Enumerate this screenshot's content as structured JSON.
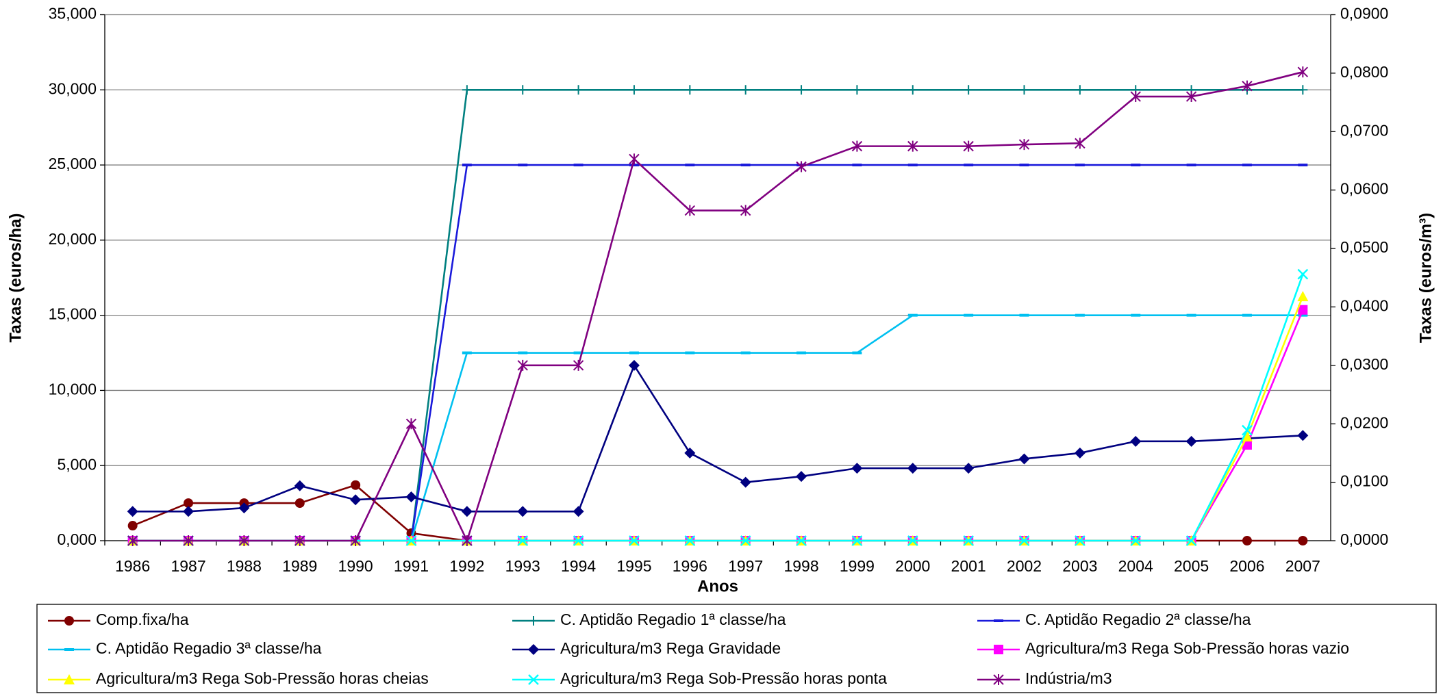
{
  "chart_data": {
    "type": "line",
    "x_label": "Anos",
    "y_label": "Taxas (euros/ha)",
    "y2_label": "Taxas (euros/m³)",
    "categories": [
      "1986",
      "1987",
      "1988",
      "1989",
      "1990",
      "1991",
      "1992",
      "1993",
      "1994",
      "1995",
      "1996",
      "1997",
      "1998",
      "1999",
      "2000",
      "2001",
      "2002",
      "2003",
      "2004",
      "2005",
      "2006",
      "2007"
    ],
    "ylim": [
      0,
      35
    ],
    "yticks": [
      {
        "value": 0,
        "label": "0,000"
      },
      {
        "value": 5,
        "label": "5,000"
      },
      {
        "value": 10,
        "label": "10,000"
      },
      {
        "value": 15,
        "label": "15,000"
      },
      {
        "value": 20,
        "label": "20,000"
      },
      {
        "value": 25,
        "label": "25,000"
      },
      {
        "value": 30,
        "label": "30,000"
      },
      {
        "value": 35,
        "label": "35,000"
      }
    ],
    "y2lim": [
      0,
      0.09
    ],
    "y2ticks": [
      {
        "value": 0,
        "label": "0,0000"
      },
      {
        "value": 0.01,
        "label": "0,0100"
      },
      {
        "value": 0.02,
        "label": "0,0200"
      },
      {
        "value": 0.03,
        "label": "0,0300"
      },
      {
        "value": 0.04,
        "label": "0,0400"
      },
      {
        "value": 0.05,
        "label": "0,0500"
      },
      {
        "value": 0.06,
        "label": "0,0600"
      },
      {
        "value": 0.07,
        "label": "0,0700"
      },
      {
        "value": 0.08,
        "label": "0,0800"
      },
      {
        "value": 0.09,
        "label": "0,0900"
      }
    ],
    "grid": true,
    "legend": "bottom",
    "series": [
      {
        "name": "Comp.fixa/ha",
        "color": "#800000",
        "marker": "circle",
        "values": [
          1.0,
          2.5,
          2.5,
          2.5,
          3.7,
          0.5,
          0,
          0,
          0,
          0,
          0,
          0,
          0,
          0,
          0,
          0,
          0,
          0,
          0,
          0,
          0,
          0
        ]
      },
      {
        "name": "C. Aptidão Regadio 1ª classe/ha",
        "color": "#008080",
        "marker": "plus",
        "values": [
          0,
          0,
          0,
          0,
          0,
          0,
          30,
          30,
          30,
          30,
          30,
          30,
          30,
          30,
          30,
          30,
          30,
          30,
          30,
          30,
          30,
          30
        ]
      },
      {
        "name": "C. Aptidão Regadio 2ª classe/ha",
        "color": "#1a1adb",
        "marker": "dash",
        "values": [
          0,
          0,
          0,
          0,
          0,
          0,
          25,
          25,
          25,
          25,
          25,
          25,
          25,
          25,
          25,
          25,
          25,
          25,
          25,
          25,
          25,
          25
        ]
      },
      {
        "name": "C. Aptidão Regadio 3ª classe/ha",
        "color": "#00c0f0",
        "marker": "dash",
        "values": [
          0,
          0,
          0,
          0,
          0,
          0,
          12.5,
          12.5,
          12.5,
          12.5,
          12.5,
          12.5,
          12.5,
          12.5,
          15,
          15,
          15,
          15,
          15,
          15,
          15,
          15
        ]
      },
      {
        "name": "Agricultura/m3 Rega Gravidade",
        "color": "#000080",
        "marker": "diamond",
        "axis": "y2",
        "values": [
          0.005,
          0.005,
          0.0056,
          0.0094,
          0.007,
          0.0075,
          0.005,
          0.005,
          0.005,
          0.03,
          0.015,
          0.01,
          0.011,
          0.0124,
          0.0124,
          0.0124,
          0.014,
          0.015,
          0.017,
          0.017,
          0.0175,
          0.018
        ]
      },
      {
        "name": "Agricultura/m3 Rega Sob-Pressão horas vazio",
        "color": "#ff00ff",
        "marker": "square",
        "axis": "y2",
        "values": [
          0,
          0,
          0,
          0,
          0,
          0,
          0,
          0,
          0,
          0,
          0,
          0,
          0,
          0,
          0,
          0,
          0,
          0,
          0,
          0,
          0.0164,
          0.0395
        ]
      },
      {
        "name": "Agricultura/m3 Rega Sob-Pressão horas cheias",
        "color": "#ffff00",
        "marker": "triangle",
        "axis": "y2",
        "values": [
          0,
          0,
          0,
          0,
          0,
          0,
          0,
          0,
          0,
          0,
          0,
          0,
          0,
          0,
          0,
          0,
          0,
          0,
          0,
          0,
          0.0178,
          0.0418
        ]
      },
      {
        "name": "Agricultura/m3 Rega Sob-Pressão horas ponta",
        "color": "#00ffff",
        "marker": "x",
        "axis": "y2",
        "values": [
          0,
          0,
          0,
          0,
          0,
          0,
          0,
          0,
          0,
          0,
          0,
          0,
          0,
          0,
          0,
          0,
          0,
          0,
          0,
          0,
          0.0189,
          0.0456
        ]
      },
      {
        "name": "Indústria/m3",
        "color": "#800080",
        "marker": "asterisk",
        "axis": "y2",
        "values": [
          0,
          0,
          0,
          0,
          0,
          0.02,
          0,
          0.03,
          0.03,
          0.0653,
          0.0565,
          0.0565,
          0.064,
          0.0675,
          0.0675,
          0.0675,
          0.0678,
          0.068,
          0.076,
          0.076,
          0.0778,
          0.0802
        ]
      }
    ]
  }
}
